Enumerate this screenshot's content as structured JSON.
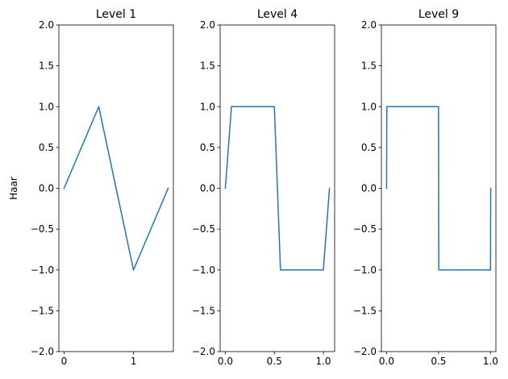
{
  "chart_data": [
    {
      "type": "line",
      "title": "Level 1",
      "ylabel": "Haar",
      "xlim": [
        -0.075,
        1.575
      ],
      "ylim": [
        -2.0,
        2.0
      ],
      "xticks": [
        0,
        1
      ],
      "xtick_labels": [
        "0",
        "1"
      ],
      "yticks": [
        -2.0,
        -1.5,
        -1.0,
        -0.5,
        0.0,
        0.5,
        1.0,
        1.5,
        2.0
      ],
      "ytick_labels": [
        "−2.0",
        "−1.5",
        "−1.0",
        "−0.5",
        "0.0",
        "0.5",
        "1.0",
        "1.5",
        "2.0"
      ],
      "series": [
        {
          "name": "Haar",
          "color": "#1f77b4",
          "x": [
            0,
            0.5,
            1.0,
            1.5
          ],
          "y": [
            0,
            1,
            -1,
            0
          ]
        }
      ]
    },
    {
      "type": "line",
      "title": "Level 4",
      "ylabel": "",
      "xlim": [
        -0.053,
        1.115
      ],
      "ylim": [
        -2.0,
        2.0
      ],
      "xticks": [
        0.0,
        0.5,
        1.0
      ],
      "xtick_labels": [
        "0.0",
        "0.5",
        "1.0"
      ],
      "yticks": [
        -2.0,
        -1.5,
        -1.0,
        -0.5,
        0.0,
        0.5,
        1.0,
        1.5,
        2.0
      ],
      "ytick_labels": [
        "−2.0",
        "−1.5",
        "−1.0",
        "−0.5",
        "0.0",
        "0.5",
        "1.0",
        "1.5",
        "2.0"
      ],
      "series": [
        {
          "name": "Haar",
          "color": "#1f77b4",
          "x": [
            0,
            0.0625,
            0.5,
            0.5625,
            1.0,
            1.0625
          ],
          "y": [
            0,
            1,
            1,
            -1,
            -1,
            0
          ]
        }
      ]
    },
    {
      "type": "line",
      "title": "Level 9",
      "ylabel": "",
      "xlim": [
        -0.05,
        1.052
      ],
      "ylim": [
        -2.0,
        2.0
      ],
      "xticks": [
        0.0,
        0.5,
        1.0
      ],
      "xtick_labels": [
        "0.0",
        "0.5",
        "1.0"
      ],
      "yticks": [
        -2.0,
        -1.5,
        -1.0,
        -0.5,
        0.0,
        0.5,
        1.0,
        1.5,
        2.0
      ],
      "ytick_labels": [
        "−2.0",
        "−1.5",
        "−1.0",
        "−0.5",
        "0.0",
        "0.5",
        "1.0",
        "1.5",
        "2.0"
      ],
      "series": [
        {
          "name": "Haar",
          "color": "#1f77b4",
          "x": [
            0,
            0.00195,
            0.5,
            0.50195,
            1.0,
            1.00195
          ],
          "y": [
            0,
            1,
            1,
            -1,
            -1,
            0
          ]
        }
      ]
    }
  ]
}
